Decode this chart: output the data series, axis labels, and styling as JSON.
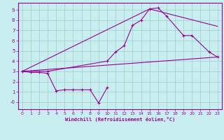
{
  "xlabel": "Windchill (Refroidissement éolien,°C)",
  "bg_color": "#c8eef0",
  "line_color": "#990099",
  "grid_color": "#a0ccc8",
  "xlim": [
    -0.5,
    23.5
  ],
  "ylim": [
    -0.7,
    9.7
  ],
  "yticks": [
    0,
    1,
    2,
    3,
    4,
    5,
    6,
    7,
    8,
    9
  ],
  "ytick_labels": [
    "-0",
    "1",
    "2",
    "3",
    "4",
    "5",
    "6",
    "7",
    "8",
    "9"
  ],
  "xticks": [
    0,
    1,
    2,
    3,
    4,
    5,
    6,
    7,
    8,
    9,
    10,
    11,
    12,
    13,
    14,
    15,
    16,
    17,
    18,
    19,
    20,
    21,
    22,
    23
  ],
  "line1_x": [
    0,
    1,
    2,
    3,
    4,
    5,
    6,
    7,
    8,
    9,
    10
  ],
  "line1_y": [
    3.0,
    2.9,
    2.9,
    2.8,
    1.1,
    1.2,
    1.2,
    1.2,
    1.2,
    -0.1,
    1.4
  ],
  "line2_x": [
    0,
    3,
    10,
    11,
    12,
    13,
    14,
    15,
    16,
    17,
    19,
    20,
    22,
    23
  ],
  "line2_y": [
    3.0,
    3.0,
    4.0,
    4.9,
    5.5,
    7.5,
    8.0,
    9.1,
    9.2,
    8.4,
    6.5,
    6.5,
    4.9,
    4.4
  ],
  "line3_x": [
    0,
    23
  ],
  "line3_y": [
    3.0,
    4.4
  ],
  "line4_x": [
    0,
    15,
    23
  ],
  "line4_y": [
    3.0,
    9.1,
    7.4
  ]
}
